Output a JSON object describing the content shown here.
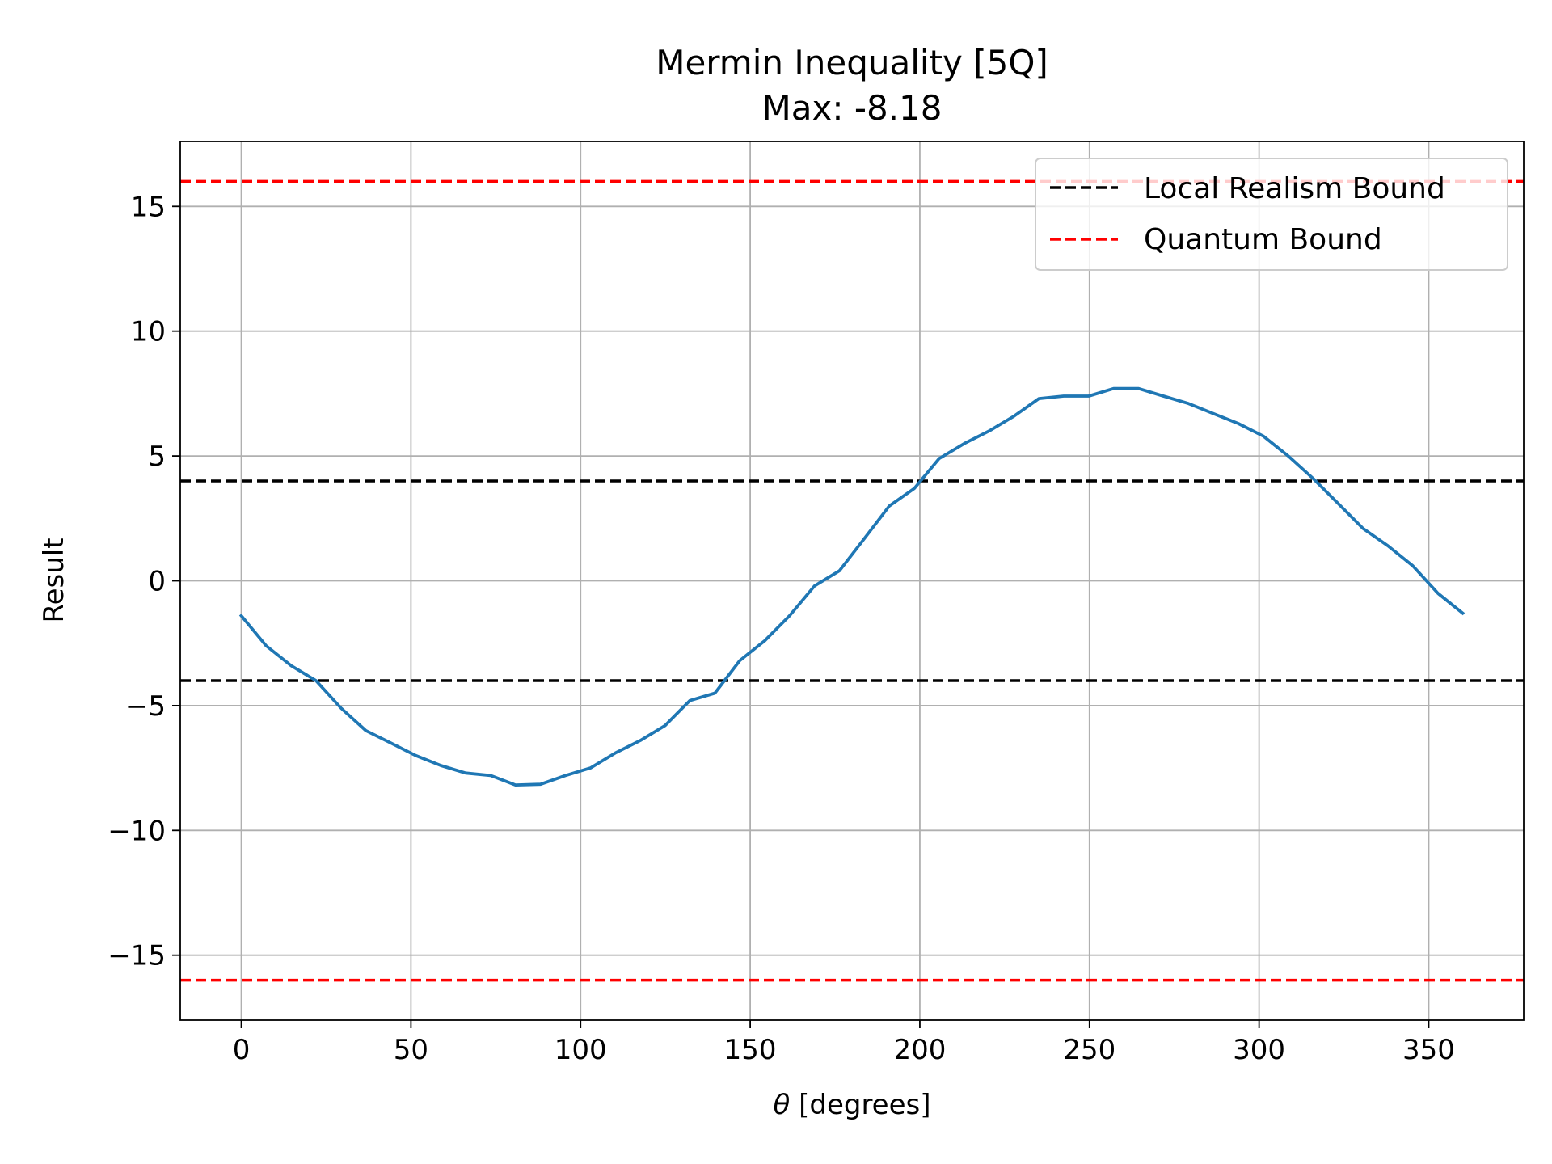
{
  "chart_data": {
    "type": "line",
    "title": "Mermin Inequality [5Q]",
    "subtitle": "Max: -8.18",
    "xlabel_symbol": "θ",
    "xlabel_text": " [degrees]",
    "ylabel": "Result",
    "xlim": [
      -18,
      378
    ],
    "ylim": [
      -17.6,
      17.6
    ],
    "grid": true,
    "legend_position": "top-right",
    "x_ticks": [
      0,
      50,
      100,
      150,
      200,
      250,
      300,
      350
    ],
    "x_tick_labels": [
      "0",
      "50",
      "100",
      "150",
      "200",
      "250",
      "300",
      "350"
    ],
    "y_ticks": [
      15,
      10,
      5,
      0,
      -5,
      -10,
      -15
    ],
    "y_tick_labels": [
      "15",
      "10",
      "5",
      "0",
      "−5",
      "−10",
      "−15"
    ],
    "series": [
      {
        "color": "#1f77b4",
        "x": [
          0,
          7.3,
          14.7,
          22,
          29.4,
          36.7,
          44.1,
          51.4,
          58.8,
          66.1,
          73.5,
          80.8,
          88.2,
          95.5,
          102.9,
          110.2,
          117.6,
          124.9,
          132.2,
          139.6,
          146.9,
          154.3,
          161.6,
          169,
          176.3,
          183.7,
          191,
          198.4,
          205.7,
          213.1,
          220.4,
          227.8,
          235.1,
          242.4,
          249.8,
          257.1,
          264.5,
          271.8,
          279.2,
          286.5,
          293.9,
          301.2,
          308.6,
          315.9,
          323.3,
          330.6,
          338,
          345.3,
          352.7,
          360
        ],
        "y": [
          -1.4,
          -2.6,
          -3.4,
          -4.0,
          -5.1,
          -6.0,
          -6.5,
          -7.0,
          -7.4,
          -7.7,
          -7.8,
          -8.18,
          -8.15,
          -7.8,
          -7.5,
          -6.9,
          -6.4,
          -5.8,
          -4.8,
          -4.5,
          -3.2,
          -2.4,
          -1.4,
          -0.2,
          0.4,
          1.7,
          3.0,
          3.7,
          4.9,
          5.5,
          6.0,
          6.6,
          7.3,
          7.4,
          7.4,
          7.7,
          7.7,
          7.4,
          7.1,
          6.7,
          6.3,
          5.8,
          5.0,
          4.1,
          3.1,
          2.1,
          1.4,
          0.6,
          -0.5,
          -1.3
        ]
      }
    ],
    "hlines": [
      {
        "name": "Local Realism Bound",
        "color": "#000000",
        "values": [
          4,
          -4
        ]
      },
      {
        "name": "Quantum Bound",
        "color": "#ff0000",
        "values": [
          16,
          -16
        ]
      }
    ]
  }
}
